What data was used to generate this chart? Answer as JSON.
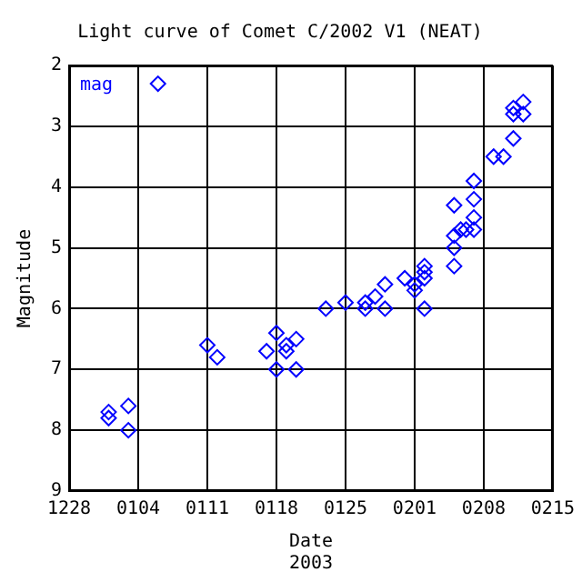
{
  "chart_data": {
    "type": "scatter",
    "title": "Light curve of Comet C/2002 V1 (NEAT)",
    "xlabel": "Date\n2003",
    "ylabel": "Magnitude",
    "x": [
      "2003-01-01",
      "2003-01-01",
      "2003-01-03",
      "2003-01-03",
      "2003-01-06",
      "2003-01-11",
      "2003-01-12",
      "2003-01-17",
      "2003-01-18",
      "2003-01-18",
      "2003-01-19",
      "2003-01-19",
      "2003-01-20",
      "2003-01-20",
      "2003-01-23",
      "2003-01-25",
      "2003-01-27",
      "2003-01-27",
      "2003-01-28",
      "2003-01-29",
      "2003-01-29",
      "2003-01-31",
      "2003-02-01",
      "2003-02-01",
      "2003-02-02",
      "2003-02-02",
      "2003-02-02",
      "2003-02-02",
      "2003-02-05",
      "2003-02-05",
      "2003-02-05",
      "2003-02-05",
      "2003-02-05T16:00",
      "2003-02-06T05:00",
      "2003-02-07",
      "2003-02-07",
      "2003-02-07",
      "2003-02-07",
      "2003-02-09",
      "2003-02-10",
      "2003-02-11",
      "2003-02-11",
      "2003-02-11",
      "2003-02-12",
      "2003-02-12"
    ],
    "series": [
      {
        "name": "mag",
        "color": "#0000ff",
        "values": [
          7.7,
          7.8,
          7.6,
          8.0,
          2.3,
          6.6,
          6.8,
          6.7,
          6.4,
          7.0,
          6.6,
          6.7,
          6.5,
          7.0,
          6.0,
          5.9,
          5.9,
          6.0,
          5.8,
          5.6,
          6.0,
          5.5,
          5.6,
          5.7,
          5.3,
          5.4,
          5.5,
          6.0,
          4.3,
          4.8,
          5.0,
          5.3,
          4.7,
          4.7,
          3.9,
          4.2,
          4.5,
          4.7,
          3.5,
          3.5,
          3.2,
          2.8,
          2.7,
          2.6,
          2.8
        ]
      }
    ],
    "xlim": [
      "2002-12-28",
      "2003-02-15"
    ],
    "xticks": [
      {
        "value": "2002-12-28",
        "label": "1228"
      },
      {
        "value": "2003-01-04",
        "label": "0104"
      },
      {
        "value": "2003-01-11",
        "label": "0111"
      },
      {
        "value": "2003-01-18",
        "label": "0118"
      },
      {
        "value": "2003-01-25",
        "label": "0125"
      },
      {
        "value": "2003-02-01",
        "label": "0201"
      },
      {
        "value": "2003-02-08",
        "label": "0208"
      },
      {
        "value": "2003-02-15",
        "label": "0215"
      }
    ],
    "ylim": [
      9,
      2
    ],
    "yticks": [
      2,
      3,
      4,
      5,
      6,
      7,
      8,
      9
    ],
    "grid": true,
    "legend": "top left",
    "marker": "diamond"
  }
}
